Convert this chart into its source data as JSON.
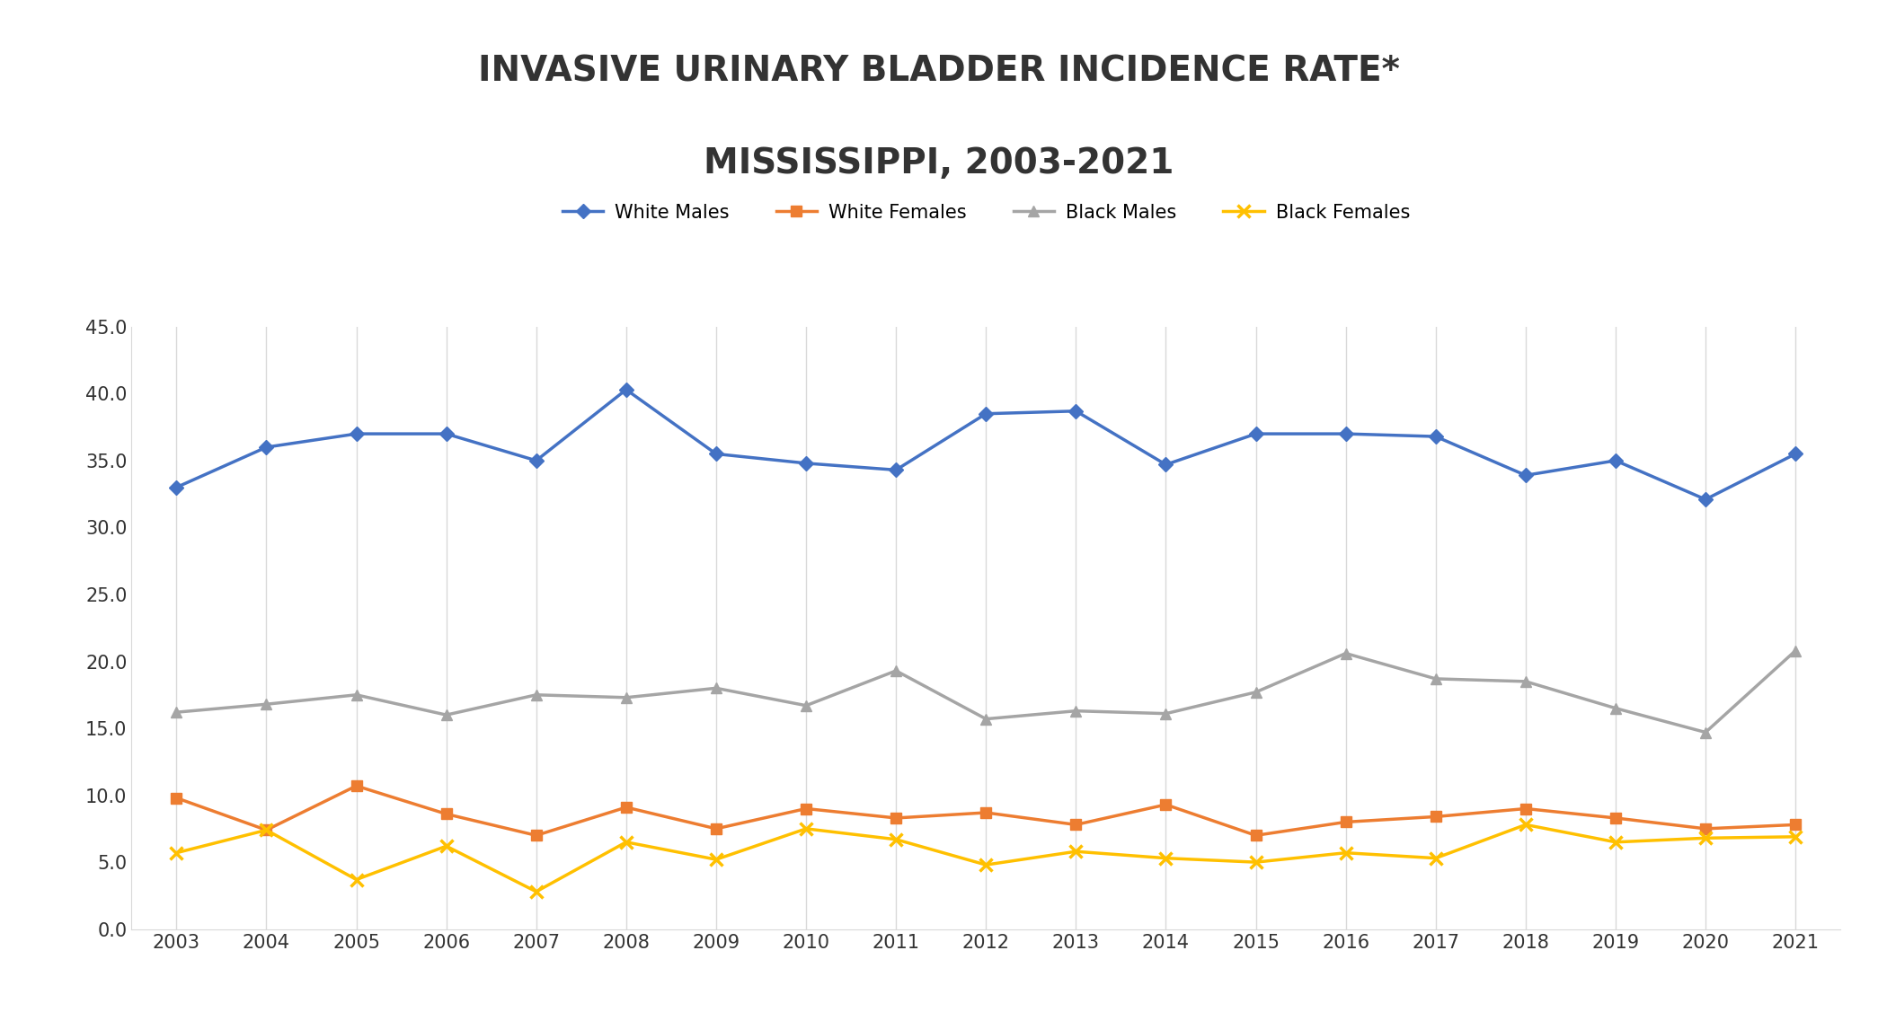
{
  "title_line1": "INVASIVE URINARY BLADDER INCIDENCE RATE*",
  "title_line2": "MISSISSIPPI, 2003-2021",
  "years": [
    2003,
    2004,
    2005,
    2006,
    2007,
    2008,
    2009,
    2010,
    2011,
    2012,
    2013,
    2014,
    2015,
    2016,
    2017,
    2018,
    2019,
    2020,
    2021
  ],
  "white_males": [
    33.0,
    36.0,
    37.0,
    37.0,
    35.0,
    40.3,
    35.5,
    34.8,
    34.3,
    38.5,
    38.7,
    34.7,
    37.0,
    37.0,
    36.8,
    33.9,
    35.0,
    32.1,
    35.5
  ],
  "white_females": [
    9.8,
    7.4,
    10.7,
    8.6,
    7.0,
    9.1,
    7.5,
    9.0,
    8.3,
    8.7,
    7.8,
    9.3,
    7.0,
    8.0,
    8.4,
    9.0,
    8.3,
    7.5,
    7.8
  ],
  "black_males": [
    16.2,
    16.8,
    17.5,
    16.0,
    17.5,
    17.3,
    18.0,
    16.7,
    19.3,
    15.7,
    16.3,
    16.1,
    17.7,
    20.6,
    18.7,
    18.5,
    16.5,
    14.7,
    20.8
  ],
  "black_females": [
    5.7,
    7.4,
    3.7,
    6.2,
    2.8,
    6.5,
    5.2,
    7.5,
    6.7,
    4.8,
    5.8,
    5.3,
    5.0,
    5.7,
    5.3,
    7.8,
    6.5,
    6.8,
    6.9
  ],
  "white_males_color": "#4472C4",
  "white_females_color": "#ED7D31",
  "black_males_color": "#A5A5A5",
  "black_females_color": "#FFC000",
  "ylim": [
    0,
    45
  ],
  "yticks": [
    0.0,
    5.0,
    10.0,
    15.0,
    20.0,
    25.0,
    30.0,
    35.0,
    40.0,
    45.0
  ],
  "background_color": "#FFFFFF",
  "grid_color": "#D9D9D9",
  "title_fontsize": 28,
  "legend_fontsize": 15,
  "tick_fontsize": 15,
  "line_width": 2.5,
  "marker_size": 8
}
